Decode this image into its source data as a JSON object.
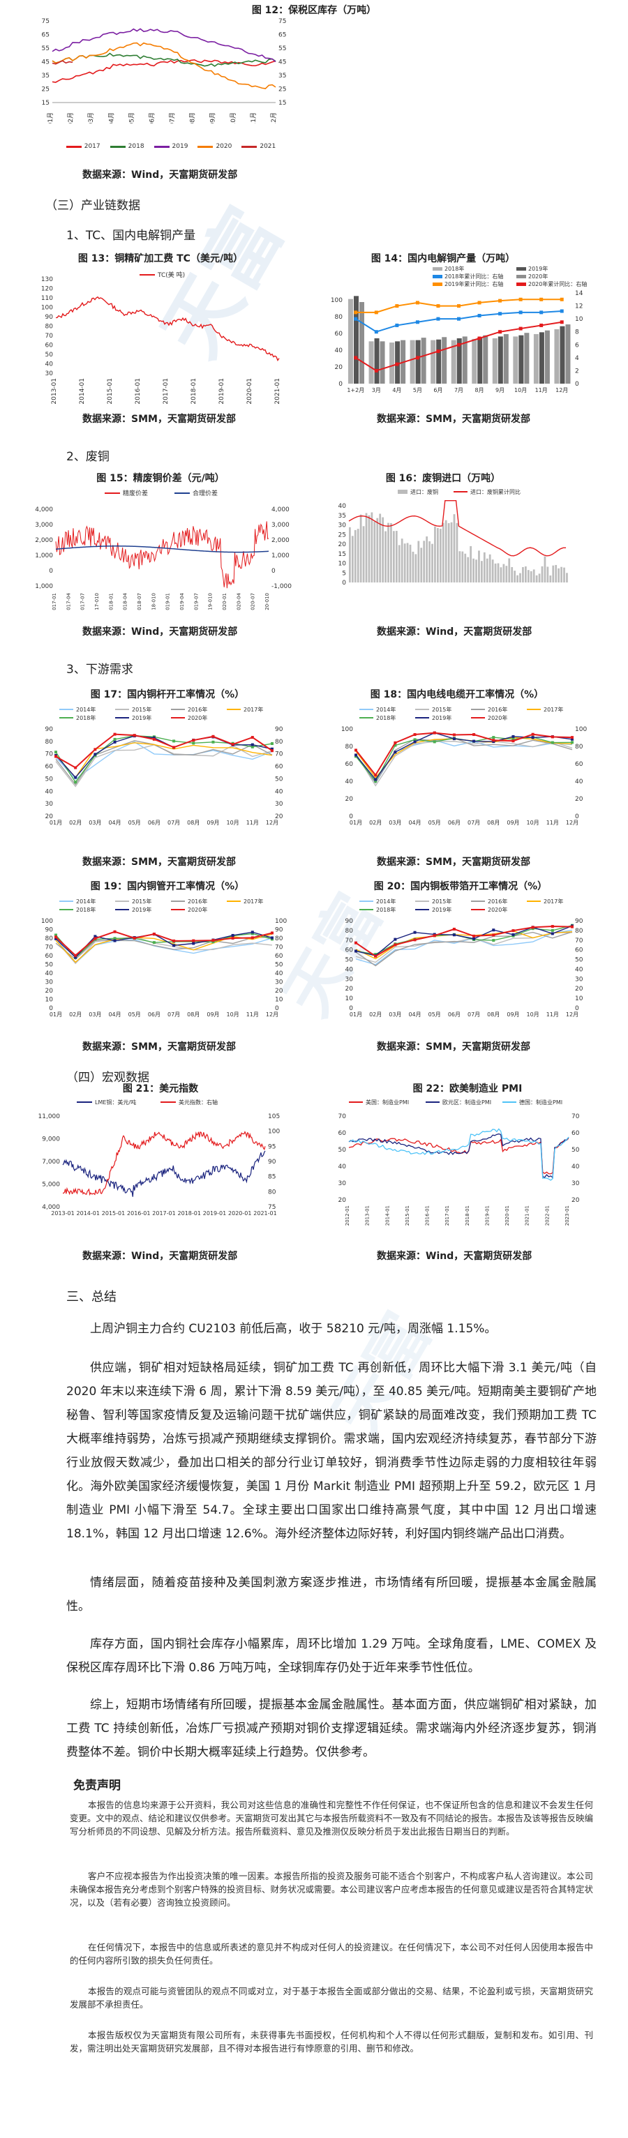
{
  "fig12": {
    "title": "图 12：保税区库存（万吨）",
    "yticks": [
      "75",
      "65",
      "55",
      "45",
      "35",
      "25",
      "15"
    ],
    "months": [
      "01月",
      "02月",
      "03月",
      "04月",
      "05月",
      "06月",
      "07月",
      "08月",
      "09月",
      "10月",
      "11月",
      "12月"
    ],
    "legend": [
      {
        "name": "2017",
        "color": "#e31a1c"
      },
      {
        "name": "2018",
        "color": "#2e7d32"
      },
      {
        "name": "2019",
        "color": "#7b1fa2"
      },
      {
        "name": "2020",
        "color": "#f57c00"
      },
      {
        "name": "2021",
        "color": "#c62828"
      }
    ],
    "source": "数据来源：Wind，天富期货研发部"
  },
  "sec3": {
    "heading": "（三）产业链数据",
    "sub1": "1、TC、国内电解铜产量",
    "sub2": "2、废铜",
    "sub3": "3、下游需求"
  },
  "fig13": {
    "title": "图 13：铜精矿加工费 TC（美元/吨）",
    "legend": "TC(美  吨)",
    "yticks": [
      "130",
      "120",
      "110",
      "100",
      "90",
      "80",
      "70",
      "60",
      "50",
      "40",
      "30"
    ],
    "xticks": [
      "2013-01",
      "2014-01",
      "2015-01",
      "2016-01",
      "2017-01",
      "2018-01",
      "2019-01",
      "2020-01",
      "2021-01"
    ],
    "source": "数据来源：SMM，天富期货研发部"
  },
  "fig14": {
    "title": "图 14：国内电解铜产量（万吨）",
    "legend": [
      "2018年",
      "2019年",
      "2018年累计同比：右轴",
      "2020年",
      "2019年累计同比：右轴",
      "2020年累计同比：右轴"
    ],
    "yticks": [
      "100",
      "80",
      "60",
      "40",
      "20",
      "0"
    ],
    "y2ticks": [
      "14",
      "12",
      "10",
      "8",
      "6",
      "4",
      "2",
      "0"
    ],
    "xticks": [
      "1+2月",
      "3月",
      "4月",
      "5月",
      "6月",
      "7月",
      "8月",
      "9月",
      "10月",
      "11月",
      "12月"
    ],
    "source": "数据来源：SMM，天富期货研发部"
  },
  "fig15": {
    "title": "图 15：精废铜价差（元/吨）",
    "legend": [
      "精废价差",
      "合理价差"
    ],
    "yticks": [
      "4,000",
      "3,000",
      "2,000",
      "1,000",
      "0",
      "-1,000"
    ],
    "source": "数据来源：Wind，天富期货研发部"
  },
  "fig16": {
    "title": "图 16：废铜进口（万吨）",
    "legend": [
      "进口：废铜",
      "进口：废铜累计同比"
    ],
    "yticks": [
      "40",
      "35",
      "30",
      "25",
      "20",
      "15",
      "10",
      "5",
      "0"
    ],
    "source": "数据来源：Wind，天富期货研发部"
  },
  "fig17": {
    "title": "图 17：国内铜杆开工率情况（%）",
    "legend": [
      "2014年",
      "2015年",
      "2016年",
      "2017年",
      "2018年",
      "2019年",
      "2020年"
    ],
    "yticks": [
      "90",
      "80",
      "70",
      "60",
      "50",
      "40",
      "30",
      "20"
    ],
    "source": "数据来源：SMM，天富期货研发部"
  },
  "fig18": {
    "title": "图 18：国内电线电缆开工率情况（%）",
    "legend": [
      "2014年",
      "2015年",
      "2016年",
      "2017年",
      "2018年",
      "2019年",
      "2020年"
    ],
    "yticks": [
      "100",
      "80",
      "60",
      "40",
      "20",
      "0"
    ],
    "source": "数据来源：SMM，天富期货研发部"
  },
  "fig19": {
    "title": "图 19：国内铜管开工率情况（%）",
    "legend": [
      "2014年",
      "2015年",
      "2016年",
      "2017年",
      "2018年",
      "2019年",
      "2020年"
    ],
    "yticks": [
      "100",
      "90",
      "80",
      "70",
      "60",
      "50",
      "40",
      "30",
      "20",
      "10",
      "0"
    ],
    "source": "数据来源：SMM，天富期货研发部"
  },
  "fig20": {
    "title": "图 20：国内铜板带箔开工率情况（%）",
    "legend": [
      "2014年",
      "2015年",
      "2016年",
      "2017年",
      "2018年",
      "2019年",
      "2020年"
    ],
    "yticks": [
      "90",
      "80",
      "70",
      "60",
      "50",
      "40",
      "30",
      "20",
      "10",
      "0"
    ],
    "source": "数据来源：SMM，天富期货研发部"
  },
  "months_x": [
    "01月",
    "02月",
    "03月",
    "04月",
    "05月",
    "06月",
    "07月",
    "08月",
    "09月",
    "10月",
    "11月",
    "12月"
  ],
  "sec4": {
    "heading": "（四）宏观数据"
  },
  "fig21": {
    "title": "图 21：美元指数",
    "legend": [
      "LME铜：美元/吨",
      "美元指数：右轴"
    ],
    "yticks": [
      "11,000",
      "9,000",
      "7,000",
      "5,000",
      "4,000"
    ],
    "y2ticks": [
      "105",
      "100",
      "95",
      "90",
      "85",
      "80",
      "75"
    ],
    "xticks": [
      "2013-01",
      "2014-01",
      "2015-01",
      "2016-01",
      "2017-01",
      "2018-01",
      "2019-01",
      "2020-01",
      "2021-01"
    ],
    "source": "数据来源：Wind，天富期货研发部"
  },
  "fig22": {
    "title": "图 22：欧美制造业 PMI",
    "legend": [
      "美国：制造业PMI",
      "欧元区：制造业PMI",
      "德国：制造业PMI"
    ],
    "yticks": [
      "70",
      "60",
      "50",
      "40",
      "30",
      "20"
    ],
    "source": "数据来源：Wind，天富期货研发部"
  },
  "summary": {
    "heading": "三、总结",
    "p1": "上周沪铜主力合约 CU2103 前低后高，收于 58210 元/吨，周涨幅 1.15%。",
    "p2": "供应端，铜矿相对短缺格局延续，铜矿加工费 TC 再创新低，周环比大幅下滑 3.1 美元/吨（自 2020 年末以来连续下滑 6 周，累计下滑 8.59 美元/吨），至 40.85 美元/吨。短期南美主要铜矿产地秘鲁、智利等国家疫情反复及运输问题干扰矿端供应，铜矿紧缺的局面难改变，我们预期加工费 TC 大概率维持弱势，冶炼亏损减产预期继续支撑铜价。需求端，国内宏观经济持续复苏，春节部分下游行业放假天数减少，叠加出口相关的部分行业订单较好，铜消费季节性边际走弱的力度相较往年弱化。海外欧美国家经济缓慢恢复，美国 1 月份 Markit 制造业 PMI 超预期上升至 59.2，欧元区 1 月制造业 PMI 小幅下滑至 54.7。全球主要出口国家出口维持高景气度，其中中国 12 月出口增速 18.1%，韩国 12 月出口增速 12.6%。海外经济整体边际好转，利好国内铜终端产品出口消费。",
    "p3": "情绪层面，随着疫苗接种及美国刺激方案逐步推进，市场情绪有所回暖，提振基本金属金融属性。",
    "p4": "库存方面，国内铜社会库存小幅累库，周环比增加 1.29 万吨。全球角度看，LME、COMEX 及保税区库存周环比下滑 0.86 万吨万吨，全球铜库存仍处于近年来季节性低位。",
    "p5": "综上，短期市场情绪有所回暖，提振基本金属金融属性。基本面方面，供应端铜矿相对紧缺，加工费 TC 持续创新低，冶炼厂亏损减产预期对铜价支撑逻辑延续。需求端海内外经济逐步复苏，铜消费整体不差。铜价中长期大概率延续上行趋势。仅供参考。"
  },
  "disclaimer": {
    "title": "免责声明",
    "p1": "本报告的信息均来源于公开资料，我公司对这些信息的准确性和完整性不作任何保证，也不保证所包含的信息和建议不会发生任何变更。文中的观点、结论和建议仅供参考。天富期货可发出其它与本报告所载资料不一致及有不同结论的报告。本报告及该等报告反映编写分析师员的不同设想、见解及分析方法。报告所载资料、意见及推测仅反映分析员于发出此报告日期当日的判断。",
    "p2": "客户不应视本报告为作出投资决策的唯一因素。本报告所指的投资及服务可能不适合个别客户，不构成客户私人咨询建议。本公司未确保本报告充分考虑到个别客户特殊的投资目标、财务状况或需要。本公司建议客户应考虑本报告的任何意见或建议是否符合其特定状况，以及（若有必要）咨询独立投资顾问。",
    "p3": "在任何情况下，本报告中的信息或所表述的意见并不构成对任何人的投资建议。在任何情况下，本公司不对任何人因使用本报告中的任何内容所引致的损失负任何责任。",
    "p4": "本报告的观点可能与资管团队的观点不同或对立，对于基于本报告全面或部分做出的交易、结果，不论盈利或亏损，天富期货研究发展部不承担责任。",
    "p5": "本报告版权仅为天富期货有限公司所有，未获得事先书面授权，任何机构和个人不得以任何形式翻版，复制和发布。如引用、刊发，需注明出处天富期货研究发展部，且不得对本报告进行有悖原意的引用、删节和修改。"
  }
}
